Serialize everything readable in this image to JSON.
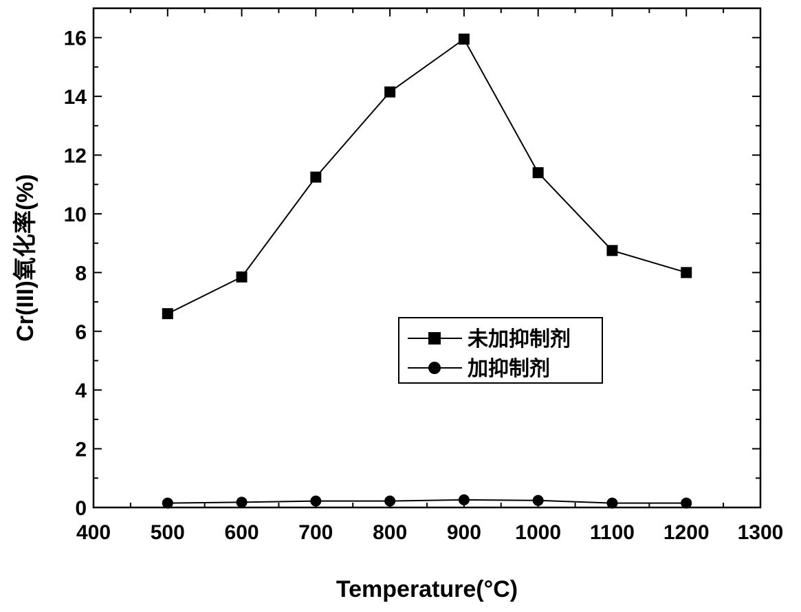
{
  "chart_data": {
    "type": "line",
    "xlabel": "Temperature(°C)",
    "ylabel": "Cr(III)氧化率(%)",
    "xlim": [
      400,
      1300
    ],
    "ylim": [
      0,
      17
    ],
    "x_ticks": [
      400,
      500,
      600,
      700,
      800,
      900,
      1000,
      1100,
      1200,
      1300
    ],
    "y_ticks": [
      0,
      2,
      4,
      6,
      8,
      10,
      12,
      14,
      16
    ],
    "x": [
      500,
      600,
      700,
      800,
      900,
      1000,
      1100,
      1200
    ],
    "series": [
      {
        "name": "未加抑制剂",
        "marker": "square",
        "values": [
          6.6,
          7.85,
          11.25,
          14.15,
          15.95,
          11.4,
          8.75,
          8.0
        ]
      },
      {
        "name": "加抑制剂",
        "marker": "circle",
        "values": [
          0.15,
          0.18,
          0.22,
          0.22,
          0.26,
          0.24,
          0.15,
          0.15
        ]
      }
    ],
    "legend_position": "center-right",
    "grid": false,
    "colors": {
      "line": "#000000",
      "marker": "#000000",
      "background": "#ffffff"
    }
  }
}
